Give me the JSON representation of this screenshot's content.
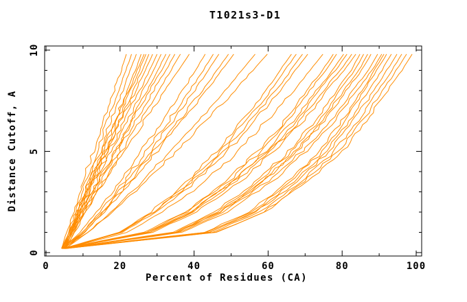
{
  "chart_data": {
    "type": "line",
    "title": "T1021s3-D1",
    "xlabel": "Percent of Residues (CA)",
    "ylabel": "Distance Cutoff, A",
    "xlim": [
      0,
      101.5
    ],
    "ylim": [
      0,
      10.2
    ],
    "grid": false,
    "legend": false,
    "axis_color": "#000000",
    "line_color": "#ff8c00",
    "x_ticks_major": [
      0,
      20,
      40,
      60,
      80,
      100
    ],
    "x_ticks_minor": [
      10,
      30,
      50,
      70,
      90
    ],
    "y_ticks_major": [
      0,
      5,
      10
    ],
    "y_ticks_minor": [
      1,
      2,
      3,
      4,
      6,
      7,
      8,
      9
    ],
    "series_description": "Each series is one model accuracy curve: x = percent of CA residues (value at each distance cutoff level in cutoff_levels).",
    "cutoff_levels": [
      0.2,
      1,
      2,
      3.5,
      5,
      6.5,
      8,
      9,
      9.8
    ],
    "series": [
      {
        "x": [
          4.2,
          5.6,
          7.4,
          10.0,
          12.8,
          15.6,
          18.4,
          20.3,
          21.7
        ]
      },
      {
        "x": [
          4.6,
          6.1,
          7.9,
          10.7,
          13.7,
          16.6,
          19.6,
          21.6,
          23.1
        ]
      },
      {
        "x": [
          5.0,
          6.6,
          8.5,
          11.4,
          14.5,
          17.6,
          20.7,
          22.8,
          24.4
        ]
      },
      {
        "x": [
          5.4,
          7.0,
          9.1,
          12.1,
          15.3,
          18.6,
          21.8,
          24.1,
          25.7
        ]
      },
      {
        "x": [
          4.4,
          6.2,
          8.4,
          11.7,
          15.2,
          18.8,
          22.3,
          24.7,
          26.5
        ]
      },
      {
        "x": [
          4.8,
          6.6,
          8.8,
          12.1,
          15.7,
          19.2,
          22.8,
          25.2,
          27.0
        ]
      },
      {
        "x": [
          5.2,
          7.0,
          9.3,
          12.7,
          16.3,
          19.9,
          23.5,
          26.0,
          27.8
        ]
      },
      {
        "x": [
          4.2,
          6.2,
          8.6,
          12.3,
          16.3,
          20.2,
          24.1,
          26.8,
          28.8
        ]
      },
      {
        "x": [
          4.6,
          6.6,
          9.2,
          13.0,
          17.0,
          21.1,
          25.2,
          28.0,
          30.0
        ]
      },
      {
        "x": [
          5.0,
          7.1,
          9.7,
          13.6,
          17.8,
          22.0,
          26.1,
          29.0,
          31.1
        ]
      },
      {
        "x": [
          5.4,
          7.6,
          10.3,
          14.3,
          18.6,
          23.0,
          27.3,
          30.2,
          32.4
        ]
      },
      {
        "x": [
          4.4,
          6.7,
          9.6,
          14.0,
          18.7,
          23.3,
          28.0,
          31.2,
          33.5
        ]
      },
      {
        "x": [
          4.8,
          7.2,
          10.2,
          14.7,
          19.5,
          24.3,
          29.1,
          32.4,
          34.8
        ]
      },
      {
        "x": [
          5.2,
          7.7,
          10.8,
          15.5,
          20.4,
          25.4,
          30.4,
          33.8,
          36.3
        ]
      },
      {
        "x": [
          4.2,
          7.0,
          10.4,
          15.6,
          21.1,
          26.6,
          32.1,
          35.9,
          38.7
        ]
      },
      {
        "x": [
          4.6,
          9.2,
          13.8,
          20.0,
          25.7,
          31.5,
          36.9,
          40.3,
          43.0
        ]
      },
      {
        "x": [
          5.0,
          9.8,
          14.6,
          21.1,
          27.1,
          33.1,
          38.8,
          42.4,
          45.2
        ]
      },
      {
        "x": [
          5.4,
          10.4,
          15.3,
          21.9,
          28.1,
          34.3,
          40.1,
          43.8,
          46.7
        ]
      },
      {
        "x": [
          4.4,
          9.8,
          15.2,
          22.4,
          29.1,
          35.8,
          42.1,
          46.2,
          49.3
        ]
      },
      {
        "x": [
          4.8,
          10.3,
          15.8,
          23.2,
          30.0,
          36.9,
          43.4,
          47.5,
          50.7
        ]
      },
      {
        "x": [
          5.2,
          11.4,
          17.5,
          25.7,
          33.4,
          41.1,
          48.3,
          52.9,
          56.5
        ]
      },
      {
        "x": [
          4.6,
          11.2,
          17.8,
          26.7,
          35.0,
          43.2,
          51.0,
          55.9,
          59.8
        ]
      },
      {
        "x": [
          5.0,
          19.7,
          28.3,
          38.1,
          46.1,
          52.8,
          59.6,
          63.2,
          66.3
        ]
      },
      {
        "x": [
          5.4,
          20.3,
          29.0,
          39.0,
          47.1,
          53.9,
          60.8,
          64.5,
          67.6
        ]
      },
      {
        "x": [
          4.4,
          20.0,
          29.1,
          39.4,
          47.9,
          55.0,
          62.2,
          66.1,
          69.3
        ]
      },
      {
        "x": [
          4.8,
          20.6,
          29.8,
          40.4,
          49.0,
          56.2,
          63.4,
          67.4,
          70.7
        ]
      },
      {
        "x": [
          5.2,
          21.9,
          31.6,
          42.8,
          51.8,
          59.5,
          67.1,
          71.3,
          74.8
        ]
      },
      {
        "x": [
          4.6,
          26.5,
          37.5,
          48.4,
          57.2,
          64.5,
          70.3,
          74.7,
          77.6
        ]
      },
      {
        "x": [
          5.0,
          27.1,
          38.1,
          49.1,
          57.9,
          65.3,
          71.2,
          75.6,
          78.5
        ]
      },
      {
        "x": [
          5.4,
          27.9,
          39.2,
          50.4,
          59.4,
          66.9,
          72.9,
          77.4,
          80.4
        ]
      },
      {
        "x": [
          4.4,
          27.5,
          39.0,
          50.5,
          59.8,
          67.5,
          73.6,
          78.2,
          81.3
        ]
      },
      {
        "x": [
          4.8,
          28.1,
          39.8,
          51.5,
          60.8,
          68.6,
          74.8,
          79.5,
          82.6
        ]
      },
      {
        "x": [
          5.2,
          28.8,
          40.5,
          52.3,
          61.7,
          69.6,
          75.9,
          80.6,
          83.7
        ]
      },
      {
        "x": [
          4.6,
          34.3,
          45.5,
          56.7,
          65.6,
          72.8,
          78.4,
          82.4,
          84.8
        ]
      },
      {
        "x": [
          5.0,
          34.9,
          46.2,
          57.5,
          66.4,
          73.7,
          79.3,
          83.4,
          85.8
        ]
      },
      {
        "x": [
          5.4,
          35.6,
          47.0,
          58.4,
          67.3,
          74.7,
          80.4,
          84.5,
          86.9
        ]
      },
      {
        "x": [
          4.4,
          35.3,
          46.9,
          58.6,
          67.8,
          75.3,
          81.1,
          85.3,
          87.8
        ]
      },
      {
        "x": [
          4.8,
          36.2,
          48.0,
          59.9,
          69.2,
          76.9,
          82.8,
          87.1,
          89.6
        ]
      },
      {
        "x": [
          5.2,
          36.8,
          48.8,
          60.8,
          70.2,
          77.9,
          83.9,
          88.1,
          90.7
        ]
      },
      {
        "x": [
          4.6,
          42.7,
          54.9,
          65.3,
          74.0,
          80.0,
          85.2,
          88.7,
          91.3
        ]
      },
      {
        "x": [
          5.0,
          43.3,
          55.5,
          65.9,
          74.6,
          80.7,
          85.9,
          89.4,
          92.0
        ]
      },
      {
        "x": [
          5.4,
          44.1,
          56.4,
          66.9,
          75.7,
          81.9,
          87.1,
          90.7,
          93.3
        ]
      },
      {
        "x": [
          4.4,
          44.2,
          56.8,
          67.7,
          76.7,
          83.0,
          88.5,
          92.1,
          94.8
        ]
      },
      {
        "x": [
          4.8,
          45.0,
          57.8,
          68.7,
          77.8,
          84.2,
          89.7,
          93.4,
          96.1
        ]
      },
      {
        "x": [
          5.2,
          45.8,
          58.7,
          69.7,
          78.9,
          85.4,
          90.9,
          94.6,
          97.4
        ]
      },
      {
        "x": [
          4.4,
          46.0,
          59.2,
          70.6,
          80.0,
          86.6,
          92.3,
          96.1,
          98.9
        ]
      }
    ]
  }
}
